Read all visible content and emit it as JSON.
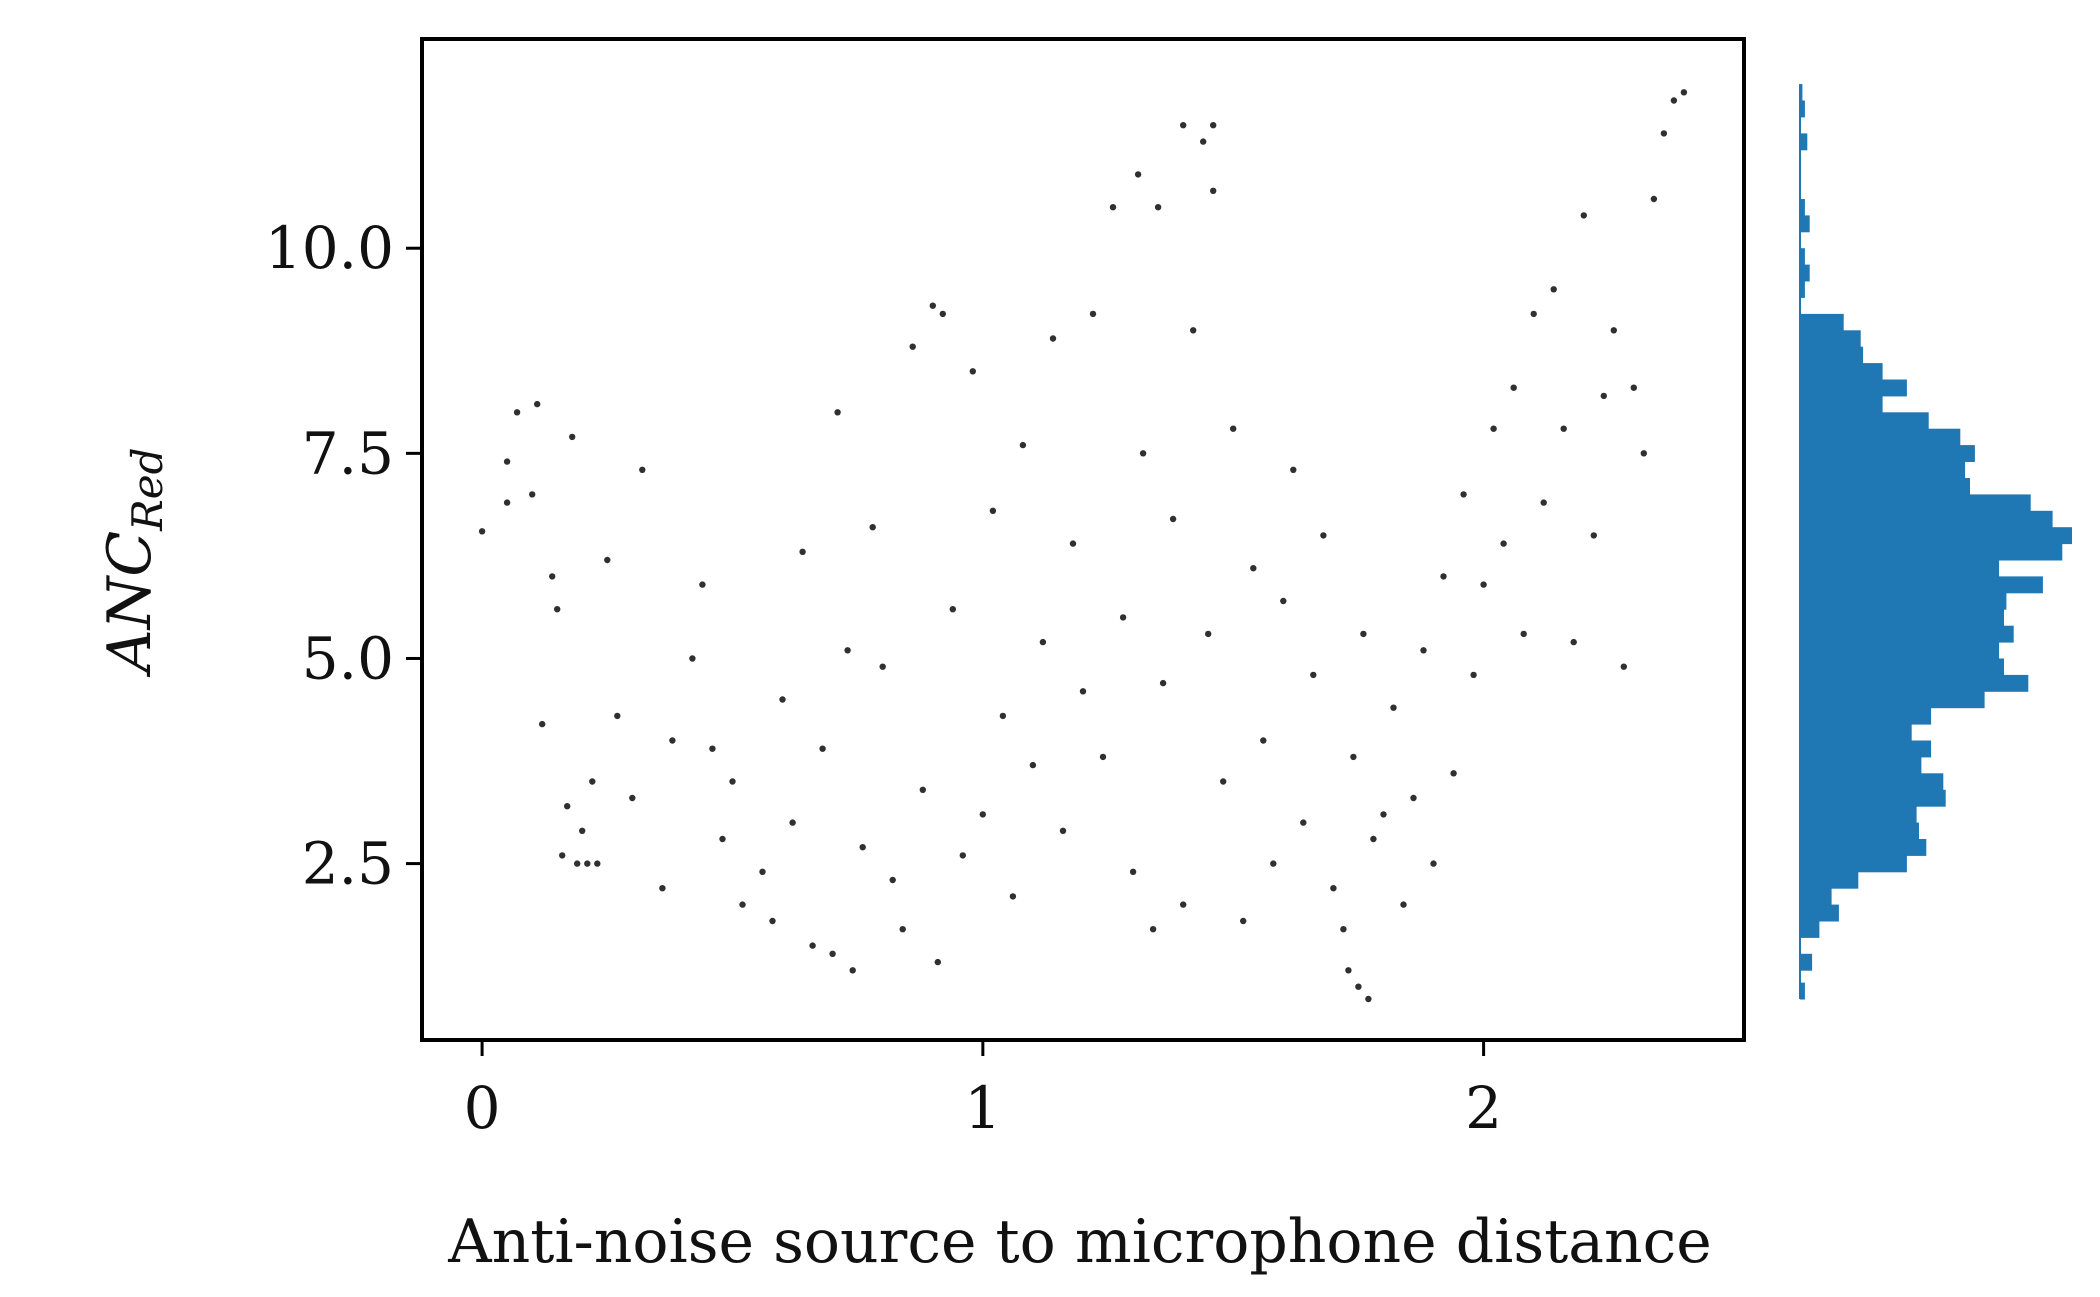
{
  "chart_data": {
    "type": "scatter",
    "title": "",
    "xlabel": "Anti-noise source to microphone distance",
    "ylabel": {
      "main": "ANC",
      "sub": "Red"
    },
    "xlim": [
      -0.12,
      2.52
    ],
    "ylim": [
      0.35,
      12.55
    ],
    "x_ticks": [
      {
        "value": 0,
        "label": "0"
      },
      {
        "value": 1,
        "label": "1"
      },
      {
        "value": 2,
        "label": "2"
      }
    ],
    "y_ticks": [
      {
        "value": 2.5,
        "label": "2.5"
      },
      {
        "value": 5.0,
        "label": "5.0"
      },
      {
        "value": 7.5,
        "label": "7.5"
      },
      {
        "value": 10.0,
        "label": "10.0"
      }
    ],
    "grid": false,
    "legend": "none",
    "point_color": "#1a1a1a",
    "hist_color": "#1f77b4",
    "series": [
      {
        "name": "",
        "points": [
          [
            0.0,
            6.55
          ],
          [
            0.05,
            6.9
          ],
          [
            0.05,
            7.4
          ],
          [
            0.07,
            8.0
          ],
          [
            0.1,
            7.0
          ],
          [
            0.11,
            8.1
          ],
          [
            0.12,
            4.2
          ],
          [
            0.14,
            6.0
          ],
          [
            0.15,
            5.6
          ],
          [
            0.16,
            2.6
          ],
          [
            0.17,
            3.2
          ],
          [
            0.18,
            7.7
          ],
          [
            0.19,
            2.5
          ],
          [
            0.2,
            2.9
          ],
          [
            0.21,
            2.5
          ],
          [
            0.22,
            3.5
          ],
          [
            0.23,
            2.5
          ],
          [
            0.25,
            6.2
          ],
          [
            0.27,
            4.3
          ],
          [
            0.3,
            3.3
          ],
          [
            0.32,
            7.3
          ],
          [
            0.36,
            2.2
          ],
          [
            0.38,
            4.0
          ],
          [
            0.42,
            5.0
          ],
          [
            0.44,
            5.9
          ],
          [
            0.46,
            3.9
          ],
          [
            0.48,
            2.8
          ],
          [
            0.5,
            3.5
          ],
          [
            0.52,
            2.0
          ],
          [
            0.56,
            2.4
          ],
          [
            0.58,
            1.8
          ],
          [
            0.6,
            4.5
          ],
          [
            0.62,
            3.0
          ],
          [
            0.64,
            6.3
          ],
          [
            0.66,
            1.5
          ],
          [
            0.68,
            3.9
          ],
          [
            0.7,
            1.4
          ],
          [
            0.71,
            8.0
          ],
          [
            0.73,
            5.1
          ],
          [
            0.74,
            1.2
          ],
          [
            0.76,
            2.7
          ],
          [
            0.78,
            6.6
          ],
          [
            0.8,
            4.9
          ],
          [
            0.82,
            2.3
          ],
          [
            0.84,
            1.7
          ],
          [
            0.86,
            8.8
          ],
          [
            0.88,
            3.4
          ],
          [
            0.9,
            9.3
          ],
          [
            0.91,
            1.3
          ],
          [
            0.92,
            9.2
          ],
          [
            0.94,
            5.6
          ],
          [
            0.96,
            2.6
          ],
          [
            0.98,
            8.5
          ],
          [
            1.0,
            3.1
          ],
          [
            1.02,
            6.8
          ],
          [
            1.04,
            4.3
          ],
          [
            1.06,
            2.1
          ],
          [
            1.08,
            7.6
          ],
          [
            1.1,
            3.7
          ],
          [
            1.12,
            5.2
          ],
          [
            1.14,
            8.9
          ],
          [
            1.16,
            2.9
          ],
          [
            1.18,
            6.4
          ],
          [
            1.2,
            4.6
          ],
          [
            1.22,
            9.2
          ],
          [
            1.24,
            3.8
          ],
          [
            1.26,
            10.5
          ],
          [
            1.28,
            5.5
          ],
          [
            1.3,
            2.4
          ],
          [
            1.31,
            10.9
          ],
          [
            1.32,
            7.5
          ],
          [
            1.34,
            1.7
          ],
          [
            1.35,
            10.5
          ],
          [
            1.36,
            4.7
          ],
          [
            1.38,
            6.7
          ],
          [
            1.4,
            2.0
          ],
          [
            1.4,
            11.5
          ],
          [
            1.42,
            9.0
          ],
          [
            1.44,
            11.3
          ],
          [
            1.45,
            5.3
          ],
          [
            1.46,
            10.7
          ],
          [
            1.46,
            11.5
          ],
          [
            1.48,
            3.5
          ],
          [
            1.5,
            7.8
          ],
          [
            1.52,
            1.8
          ],
          [
            1.54,
            6.1
          ],
          [
            1.56,
            4.0
          ],
          [
            1.58,
            2.5
          ],
          [
            1.6,
            5.7
          ],
          [
            1.62,
            7.3
          ],
          [
            1.64,
            3.0
          ],
          [
            1.66,
            4.8
          ],
          [
            1.68,
            6.5
          ],
          [
            1.7,
            2.2
          ],
          [
            1.72,
            1.7
          ],
          [
            1.73,
            1.2
          ],
          [
            1.74,
            3.8
          ],
          [
            1.75,
            1.0
          ],
          [
            1.76,
            5.3
          ],
          [
            1.77,
            0.85
          ],
          [
            1.78,
            2.8
          ],
          [
            1.8,
            3.1
          ],
          [
            1.82,
            4.4
          ],
          [
            1.84,
            2.0
          ],
          [
            1.86,
            3.3
          ],
          [
            1.88,
            5.1
          ],
          [
            1.9,
            2.5
          ],
          [
            1.92,
            6.0
          ],
          [
            1.94,
            3.6
          ],
          [
            1.96,
            7.0
          ],
          [
            1.98,
            4.8
          ],
          [
            2.0,
            5.9
          ],
          [
            2.02,
            7.8
          ],
          [
            2.04,
            6.4
          ],
          [
            2.06,
            8.3
          ],
          [
            2.08,
            5.3
          ],
          [
            2.1,
            9.2
          ],
          [
            2.12,
            6.9
          ],
          [
            2.14,
            9.5
          ],
          [
            2.16,
            7.8
          ],
          [
            2.18,
            5.2
          ],
          [
            2.2,
            10.4
          ],
          [
            2.22,
            6.5
          ],
          [
            2.24,
            8.2
          ],
          [
            2.26,
            9.0
          ],
          [
            2.28,
            4.9
          ],
          [
            2.3,
            8.3
          ],
          [
            2.32,
            7.5
          ],
          [
            2.34,
            10.6
          ],
          [
            2.36,
            11.4
          ],
          [
            2.38,
            11.8
          ],
          [
            2.4,
            11.9
          ]
        ]
      }
    ],
    "marginal_histogram": {
      "orientation": "horizontal",
      "bins": [
        [
          0.85,
          0.2,
          10
        ],
        [
          1.2,
          0.2,
          25
        ],
        [
          1.4,
          0.2,
          0
        ],
        [
          1.6,
          0.2,
          40
        ],
        [
          1.8,
          0.2,
          80
        ],
        [
          2.0,
          0.2,
          65
        ],
        [
          2.2,
          0.2,
          120
        ],
        [
          2.4,
          0.2,
          220
        ],
        [
          2.6,
          0.2,
          260
        ],
        [
          2.8,
          0.2,
          245
        ],
        [
          3.0,
          0.2,
          240
        ],
        [
          3.2,
          0.2,
          300
        ],
        [
          3.4,
          0.2,
          295
        ],
        [
          3.6,
          0.2,
          250
        ],
        [
          3.8,
          0.2,
          270
        ],
        [
          4.0,
          0.2,
          230
        ],
        [
          4.2,
          0.2,
          270
        ],
        [
          4.4,
          0.2,
          380
        ],
        [
          4.6,
          0.2,
          470
        ],
        [
          4.8,
          0.2,
          420
        ],
        [
          5.0,
          0.2,
          410
        ],
        [
          5.2,
          0.2,
          440
        ],
        [
          5.4,
          0.2,
          420
        ],
        [
          5.6,
          0.2,
          425
        ],
        [
          5.8,
          0.2,
          500
        ],
        [
          6.0,
          0.2,
          410
        ],
        [
          6.2,
          0.2,
          540
        ],
        [
          6.4,
          0.2,
          560
        ],
        [
          6.6,
          0.2,
          520
        ],
        [
          6.8,
          0.2,
          475
        ],
        [
          7.0,
          0.2,
          350
        ],
        [
          7.2,
          0.2,
          340
        ],
        [
          7.4,
          0.2,
          360
        ],
        [
          7.6,
          0.2,
          330
        ],
        [
          7.8,
          0.2,
          265
        ],
        [
          8.0,
          0.2,
          170
        ],
        [
          8.2,
          0.2,
          220
        ],
        [
          8.4,
          0.2,
          170
        ],
        [
          8.6,
          0.2,
          130
        ],
        [
          8.8,
          0.2,
          125
        ],
        [
          9.0,
          0.2,
          90
        ],
        [
          9.2,
          0.2,
          0
        ],
        [
          9.4,
          0.2,
          10
        ],
        [
          9.6,
          0.2,
          20
        ],
        [
          9.8,
          0.2,
          10
        ],
        [
          10.0,
          0.2,
          0
        ],
        [
          10.2,
          0.2,
          20
        ],
        [
          10.4,
          0.2,
          10
        ],
        [
          10.6,
          0.2,
          0
        ],
        [
          11.2,
          0.2,
          15
        ],
        [
          11.6,
          0.2,
          10
        ],
        [
          11.8,
          0.2,
          5
        ]
      ]
    }
  }
}
